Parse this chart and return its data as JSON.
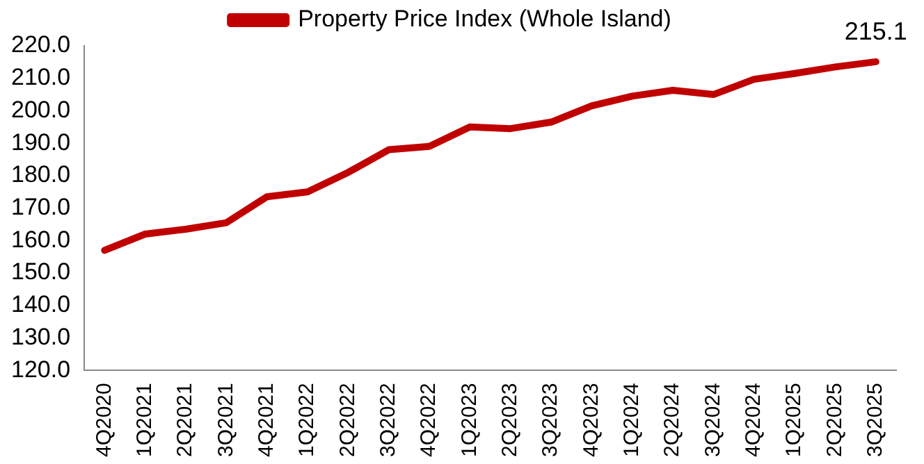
{
  "chart_data": {
    "type": "line",
    "categories": [
      "4Q2020",
      "1Q2021",
      "2Q2021",
      "3Q2021",
      "4Q2021",
      "1Q2022",
      "2Q2022",
      "3Q2022",
      "4Q2022",
      "1Q2023",
      "2Q2023",
      "3Q2023",
      "4Q2023",
      "1Q2024",
      "2Q2024",
      "3Q2024",
      "4Q2024",
      "1Q2025",
      "2Q2025",
      "3Q2025"
    ],
    "series": [
      {
        "name": "Property Price Index (Whole Island)",
        "color": "#c00000",
        "values": [
          157,
          162,
          163.5,
          165.5,
          173.5,
          175,
          181,
          188,
          189,
          195,
          194.5,
          196.5,
          201.5,
          204.5,
          206.3,
          205,
          209.7,
          211.5,
          213.5,
          215.1
        ],
        "value_labels": [
          null,
          null,
          null,
          null,
          null,
          null,
          null,
          null,
          null,
          null,
          null,
          null,
          null,
          null,
          null,
          null,
          null,
          null,
          null,
          "215.1"
        ]
      }
    ],
    "ylim": [
      120,
      220
    ],
    "yticks": [
      {
        "value": 120,
        "label": "120.0"
      },
      {
        "value": 130,
        "label": "130.0"
      },
      {
        "value": 140,
        "label": "140.0"
      },
      {
        "value": 150,
        "label": "150.0"
      },
      {
        "value": 160,
        "label": "160.0"
      },
      {
        "value": 170,
        "label": "170.0"
      },
      {
        "value": 180,
        "label": "180.0"
      },
      {
        "value": 190,
        "label": "190.0"
      },
      {
        "value": 200,
        "label": "200.0"
      },
      {
        "value": 210,
        "label": "210.0"
      },
      {
        "value": 220,
        "label": "220.0"
      }
    ],
    "grid": false,
    "legend": "top",
    "marker": "none",
    "line_style": "solid"
  }
}
